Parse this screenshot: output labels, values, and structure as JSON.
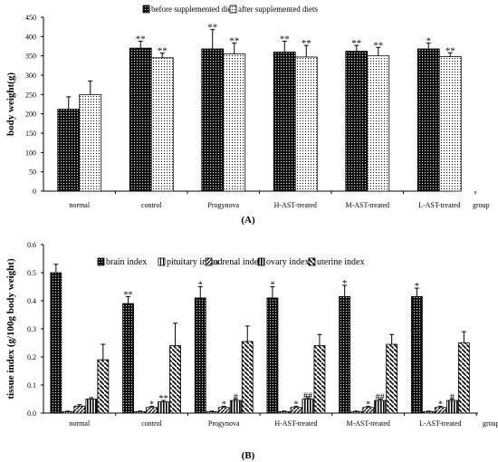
{
  "panels": [
    {
      "label": "(A)",
      "chart_data": {
        "type": "bar",
        "ylabel": "body weight(g)",
        "xlabel": "group",
        "ylim": [
          0,
          450
        ],
        "yticks": [
          0,
          50,
          100,
          150,
          200,
          250,
          300,
          350,
          400,
          450
        ],
        "grid": false,
        "legend_position": "top",
        "categories": [
          "normal",
          "control",
          "Progynova",
          "H-AST-treated",
          "M-AST-treated",
          "L-AST-treated"
        ],
        "series": [
          {
            "name": "before supplemented diets",
            "pattern": "dark-dots",
            "values": [
              212,
              370,
              368,
              360,
              362,
              368
            ],
            "errors": [
              32,
              18,
              50,
              28,
              15,
              15
            ],
            "marks": [
              "",
              "**",
              "**",
              "**",
              "**",
              "*"
            ]
          },
          {
            "name": "after supplemented diets",
            "pattern": "light-dots",
            "values": [
              250,
              345,
              355,
              347,
              350,
              348
            ],
            "errors": [
              35,
              12,
              28,
              30,
              22,
              10
            ],
            "marks": [
              "",
              "**",
              "**",
              "**",
              "**",
              "**"
            ]
          }
        ]
      }
    },
    {
      "label": "(B)",
      "chart_data": {
        "type": "bar",
        "ylabel": "tissue index (g/100g body weight)",
        "xlabel": "group",
        "ylim": [
          0,
          0.6
        ],
        "yticks": [
          0,
          0.1,
          0.2,
          0.3,
          0.4,
          0.5,
          0.6
        ],
        "grid": false,
        "legend_position": "top",
        "categories": [
          "normal",
          "control",
          "Progynova",
          "H-AST-treated",
          "M-AST-treated",
          "L-AST-treated"
        ],
        "series": [
          {
            "name": "brain index",
            "pattern": "dark-dots",
            "values": [
              0.5,
              0.39,
              0.41,
              0.41,
              0.415,
              0.415
            ],
            "errors": [
              0.03,
              0.025,
              0.04,
              0.04,
              0.04,
              0.03
            ],
            "marks": [
              "",
              "**",
              "*",
              "*",
              "*",
              "*"
            ]
          },
          {
            "name": "pituitary index",
            "pattern": "vertical-lines",
            "values": [
              0.005,
              0.005,
              0.005,
              0.005,
              0.005,
              0.005
            ],
            "errors": [
              0.002,
              0.002,
              0.002,
              0.002,
              0.002,
              0.002
            ],
            "marks": [
              "",
              "",
              "",
              "",
              "",
              ""
            ]
          },
          {
            "name": "adrenal index",
            "pattern": "diagonal-lines",
            "values": [
              0.025,
              0.02,
              0.02,
              0.02,
              0.02,
              0.02
            ],
            "errors": [
              0.005,
              0.004,
              0.004,
              0.004,
              0.004,
              0.004
            ],
            "marks": [
              "",
              "*",
              "*",
              "*",
              "*",
              "*"
            ]
          },
          {
            "name": "ovary index",
            "pattern": "vertical-bold-lines",
            "values": [
              0.05,
              0.04,
              0.045,
              0.05,
              0.045,
              0.045
            ],
            "errors": [
              0.005,
              0.005,
              0.005,
              0.005,
              0.005,
              0.005
            ],
            "marks": [
              "",
              "**",
              "#",
              "##",
              "##",
              "#"
            ]
          },
          {
            "name": "uterine index",
            "pattern": "backslash-lines",
            "values": [
              0.19,
              0.24,
              0.255,
              0.24,
              0.245,
              0.25
            ],
            "errors": [
              0.055,
              0.08,
              0.055,
              0.04,
              0.035,
              0.04
            ],
            "marks": [
              "",
              "",
              "",
              "",
              "",
              ""
            ]
          }
        ]
      }
    }
  ]
}
